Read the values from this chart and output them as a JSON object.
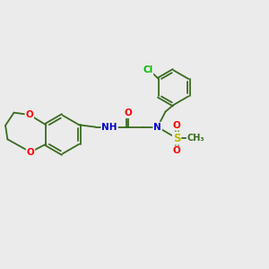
{
  "bg_color": "#ebebeb",
  "bond_color": "#3a6b20",
  "atom_colors": {
    "O": "#ff0000",
    "N": "#0000cc",
    "S": "#bbbb00",
    "Cl": "#00bb00",
    "C": "#3a6b20"
  },
  "bond_lw": 1.3,
  "font_size": 7.5
}
